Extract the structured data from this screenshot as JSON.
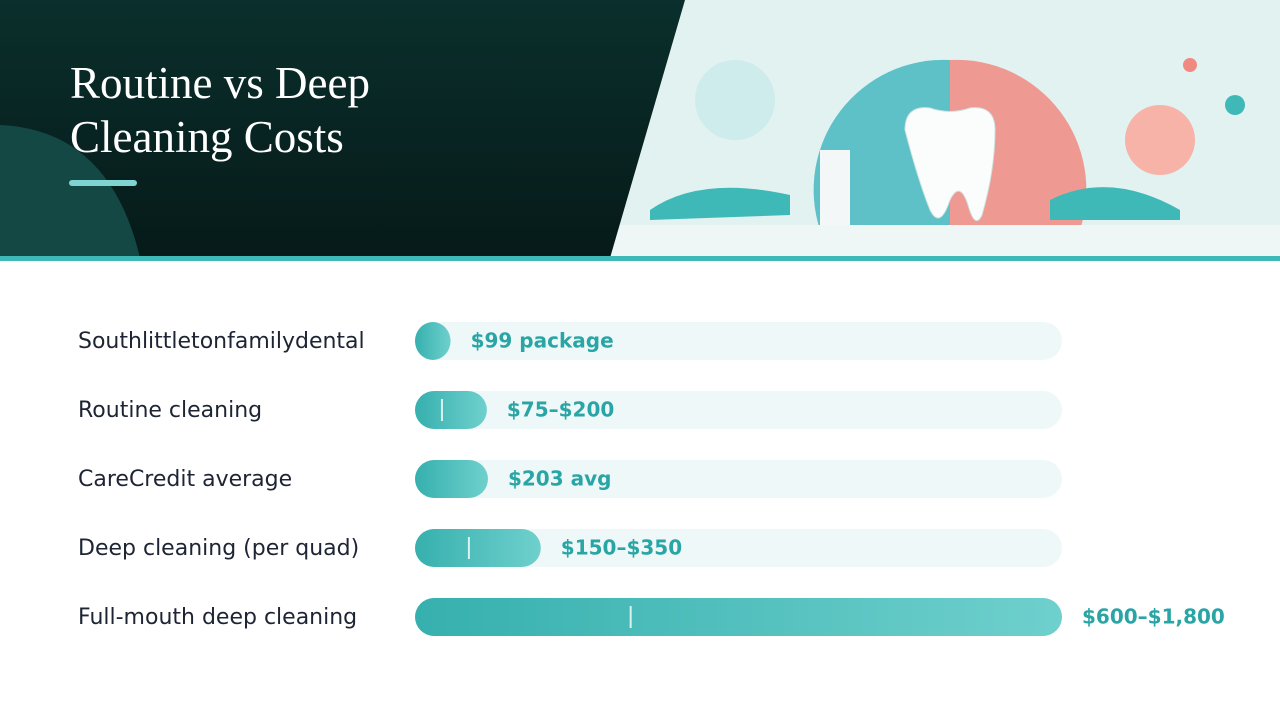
{
  "chart_data": {
    "type": "bar",
    "orientation": "horizontal",
    "title": "Routine vs Deep Cleaning Costs",
    "categories": [
      "Southlittletonfamilydental",
      "Routine cleaning",
      "CareCredit average",
      "Deep cleaning (per quad)",
      "Full-mouth deep cleaning"
    ],
    "values": [
      99,
      200,
      203,
      350,
      1800
    ],
    "low": [
      null,
      75,
      null,
      150,
      600
    ],
    "value_labels": [
      "$99 package",
      "$75–$200",
      "$203 avg",
      "$150–$350",
      "$600–$1,800"
    ],
    "color": "#3fb8b8"
  }
}
